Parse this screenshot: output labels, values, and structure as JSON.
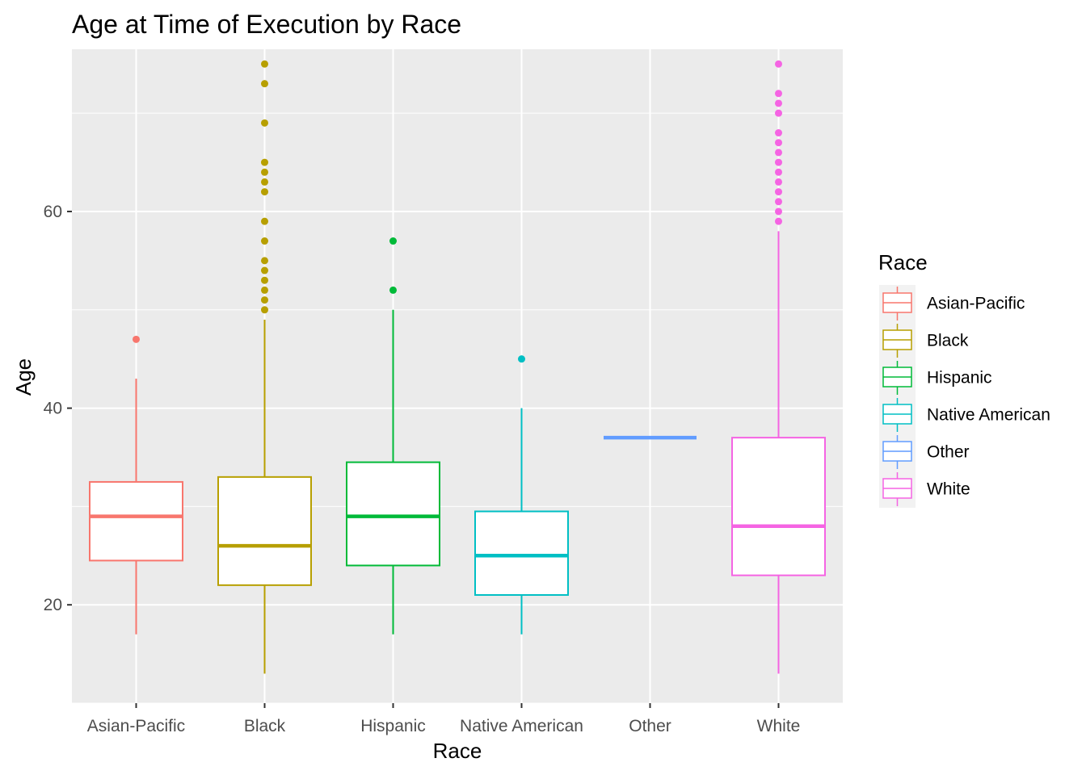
{
  "chart_data": {
    "type": "boxplot",
    "title": "Age at Time of Execution by Race",
    "xlabel": "Race",
    "ylabel": "Age",
    "ylim": [
      10,
      76.5
    ],
    "yticks": [
      20,
      40,
      60
    ],
    "grid": true,
    "legend": {
      "title": "Race",
      "position": "right"
    },
    "categories": [
      "Asian-Pacific",
      "Black",
      "Hispanic",
      "Native American",
      "Other",
      "White"
    ],
    "series": [
      {
        "name": "Asian-Pacific",
        "color": "#F8766D",
        "whisker_low": 17,
        "q1": 24.5,
        "median": 29,
        "q3": 32.5,
        "whisker_high": 43,
        "outliers": [
          47
        ]
      },
      {
        "name": "Black",
        "color": "#B79F00",
        "whisker_low": 13,
        "q1": 22,
        "median": 26,
        "q3": 33,
        "whisker_high": 49,
        "outliers": [
          50,
          51,
          52,
          53,
          54,
          55,
          57,
          59,
          62,
          63,
          64,
          65,
          69,
          73,
          75
        ]
      },
      {
        "name": "Hispanic",
        "color": "#00BA38",
        "whisker_low": 17,
        "q1": 24,
        "median": 29,
        "q3": 34.5,
        "whisker_high": 50,
        "outliers": [
          52,
          57
        ]
      },
      {
        "name": "Native American",
        "color": "#00BFC4",
        "whisker_low": 17,
        "q1": 21,
        "median": 25,
        "q3": 29.5,
        "whisker_high": 40,
        "outliers": [
          45
        ]
      },
      {
        "name": "Other",
        "color": "#619CFF",
        "whisker_low": 37,
        "q1": 37,
        "median": 37,
        "q3": 37,
        "whisker_high": 37,
        "outliers": []
      },
      {
        "name": "White",
        "color": "#F564E3",
        "whisker_low": 13,
        "q1": 23,
        "median": 28,
        "q3": 37,
        "whisker_high": 58,
        "outliers": [
          59,
          60,
          61,
          62,
          63,
          64,
          65,
          66,
          67,
          68,
          70,
          71,
          72,
          75
        ]
      }
    ]
  }
}
